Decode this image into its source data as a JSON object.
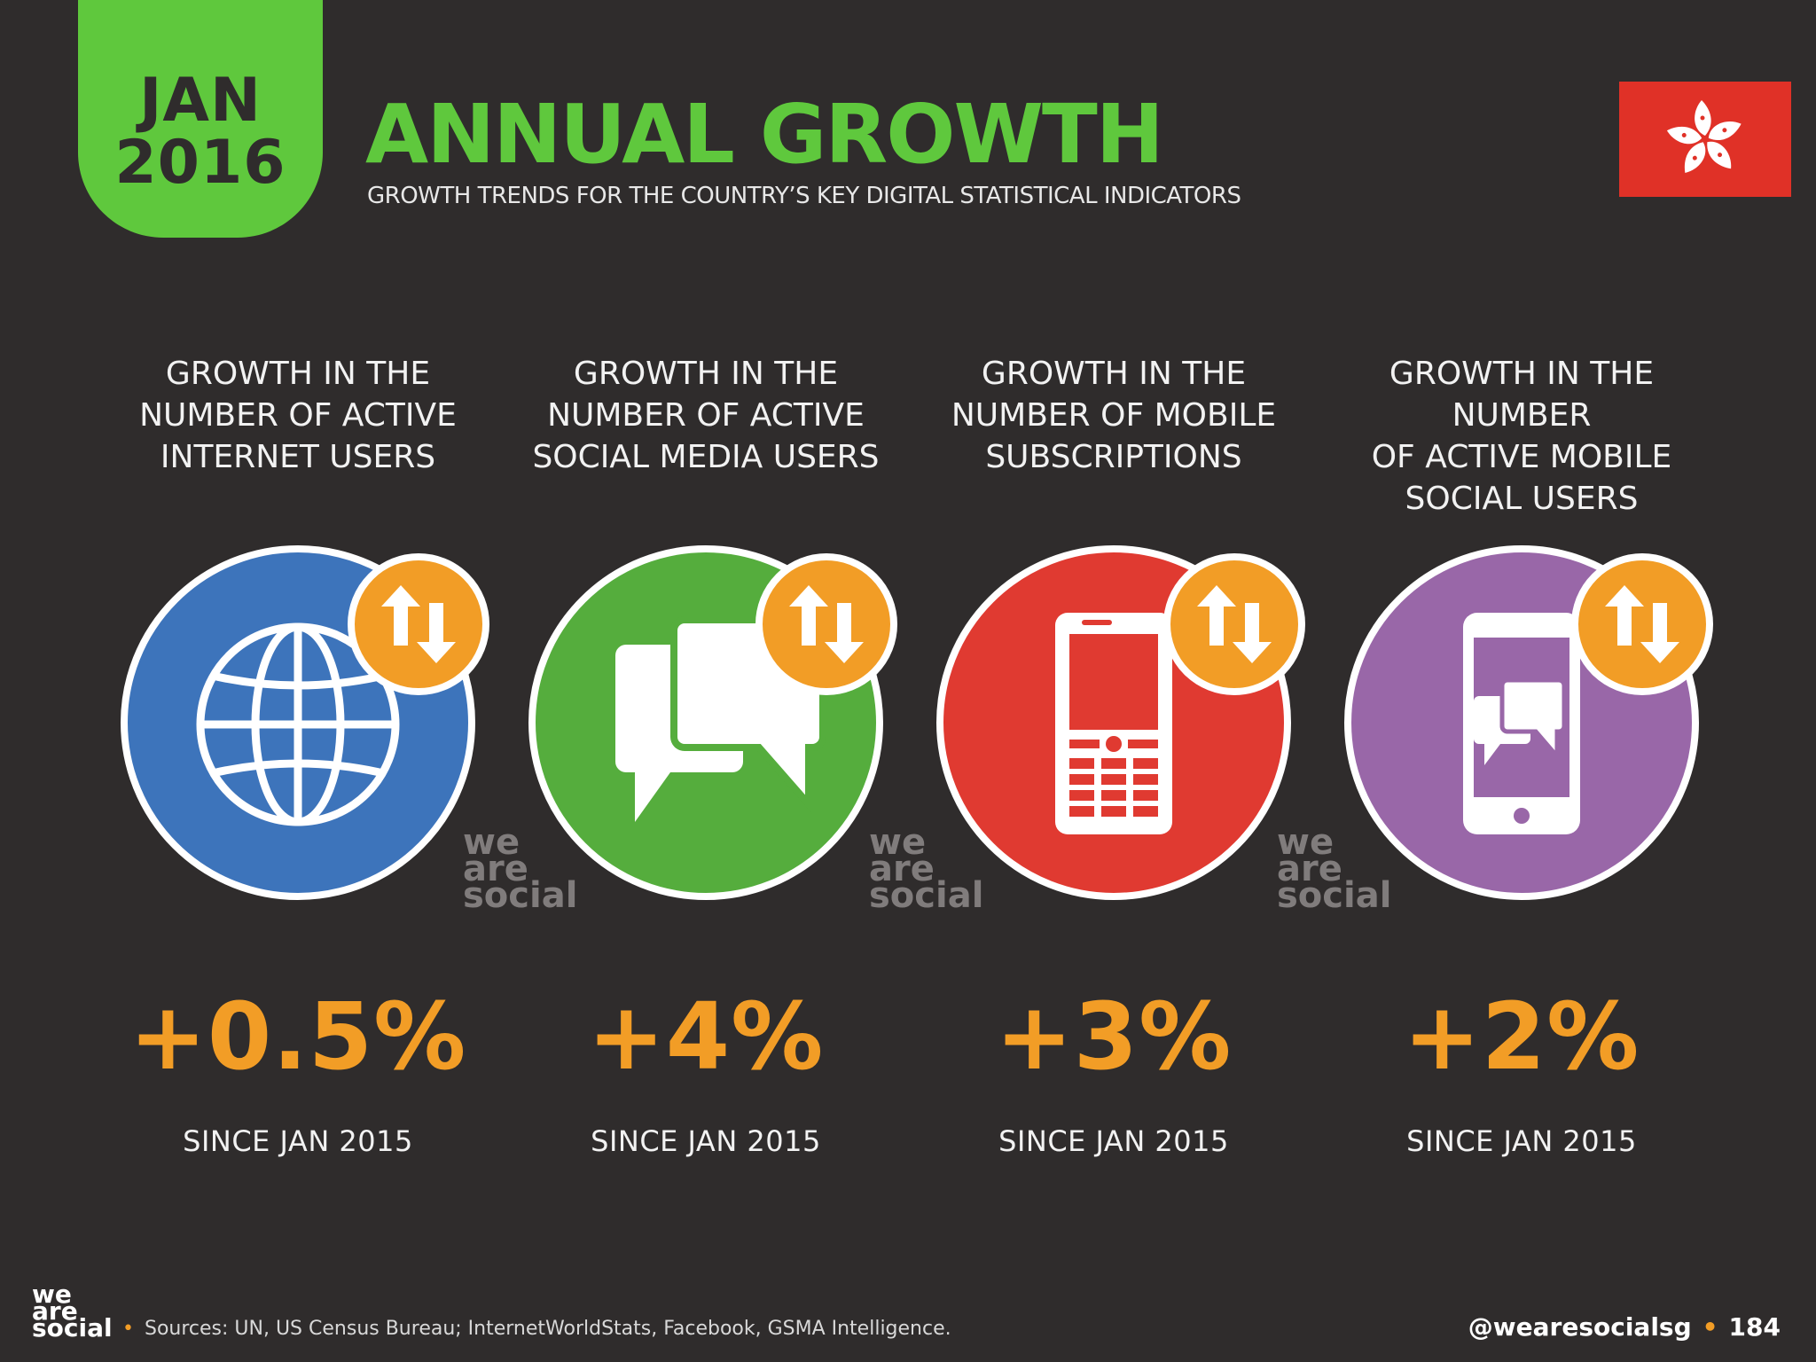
{
  "header": {
    "month": "JAN",
    "year": "2016",
    "title": "ANNUAL GROWTH",
    "subtitle": "GROWTH TRENDS FOR THE COUNTRY’S KEY DIGITAL STATISTICAL INDICATORS"
  },
  "colors": {
    "background": "#2f2c2c",
    "green": "#5fc83d",
    "orange": "#f29d26",
    "internet_blue": "#3d74bb",
    "social_green": "#55ad3d",
    "mobile_red": "#e03a31",
    "mobile_social_purple": "#9967a8",
    "flag_red": "#e03127"
  },
  "stats": [
    {
      "label": "GROWTH IN THE\nNUMBER OF ACTIVE\nINTERNET USERS",
      "value": "+0.5%",
      "since": "SINCE JAN 2015",
      "icon": "globe-icon"
    },
    {
      "label": "GROWTH IN THE\nNUMBER OF ACTIVE\nSOCIAL MEDIA USERS",
      "value": "+4%",
      "since": "SINCE JAN 2015",
      "icon": "chat-bubbles-icon"
    },
    {
      "label": "GROWTH IN THE\nNUMBER OF MOBILE\nSUBSCRIPTIONS",
      "value": "+3%",
      "since": "SINCE JAN 2015",
      "icon": "mobile-phone-icon"
    },
    {
      "label": "GROWTH IN THE NUMBER\nOF ACTIVE MOBILE\nSOCIAL USERS",
      "value": "+2%",
      "since": "SINCE JAN 2015",
      "icon": "smartphone-chat-icon"
    }
  ],
  "watermark": {
    "line1": "we",
    "line2": "are",
    "line3": "social"
  },
  "footer": {
    "logo_line1": "we",
    "logo_line2": "are",
    "logo_line3": "social",
    "sources": "Sources: UN, US Census Bureau; InternetWorldStats, Facebook, GSMA Intelligence.",
    "handle": "@wearesocialsg",
    "page_number": "184"
  }
}
